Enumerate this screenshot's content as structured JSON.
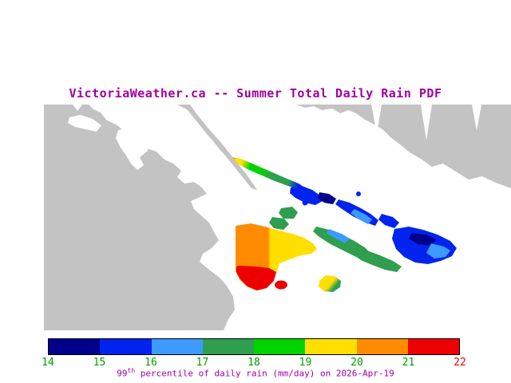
{
  "title": "VictoriaWeather.ca -- Summer Total Daily Rain PDF",
  "map": {
    "land_color": "#c3c3c3",
    "water_color": "#ffffff"
  },
  "colorbar": {
    "tick_labels": [
      "14",
      "15",
      "16",
      "17",
      "18",
      "19",
      "20",
      "21",
      "22"
    ],
    "segment_colors": [
      "#00008a",
      "#0024ee",
      "#3d9aff",
      "#2f9e4f",
      "#00d400",
      "#ffdf00",
      "#ff8c00",
      "#ee0000"
    ],
    "tick_color": "#00a000",
    "tick_color_last": "#ee0000"
  },
  "caption": {
    "value_prefix": "99",
    "value_superscript": "th",
    "text": " percentile of daily rain (mm/day) on 2026-Apr-19",
    "color": "#a000a0"
  }
}
